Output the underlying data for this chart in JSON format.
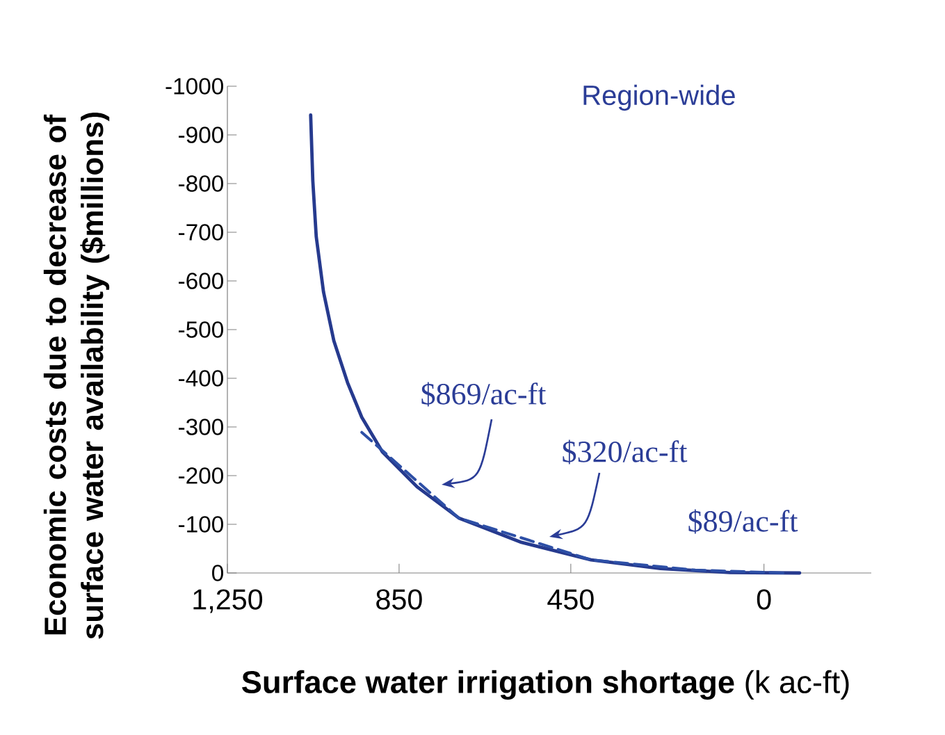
{
  "chart_data": {
    "type": "line",
    "title": "Region-wide",
    "xlabel": "**Surface water irrigation shortage** (k ac-ft)",
    "ylabel": "Economic costs due to decrease of surface water availability ($millions)",
    "xlim": [
      1250,
      -250
    ],
    "xticks": [
      {
        "value": 1250,
        "label": "1,250"
      },
      850,
      450,
      0
    ],
    "ylim": [
      0,
      -1000
    ],
    "yticks": [
      0,
      -100,
      -200,
      -300,
      -400,
      -500,
      -600,
      -700,
      -800,
      -900,
      -1000
    ],
    "grid": false,
    "series": [
      {
        "x": [
          1056,
          1051,
          1043,
          1026,
          1002,
          970,
          937,
          889,
          808,
          711,
          565,
          403,
          241,
          79,
          -83
        ],
        "values": [
          -941,
          -806,
          -691,
          -577,
          -477,
          -391,
          -320,
          -249,
          -177,
          -113,
          -63,
          -27,
          -9,
          -1,
          0
        ],
        "color": "#263a8e",
        "line_style": "solid"
      },
      {
        "x": [
          937,
          711,
          403,
          160,
          -48
        ],
        "values": [
          -289,
          -113,
          -27,
          -6,
          0
        ],
        "color": "#2d4fa6",
        "line_style": "dashed"
      }
    ],
    "annotations": [
      "$869/ac-ft",
      "$320/ac-ft",
      "$89/ac-ft"
    ]
  }
}
